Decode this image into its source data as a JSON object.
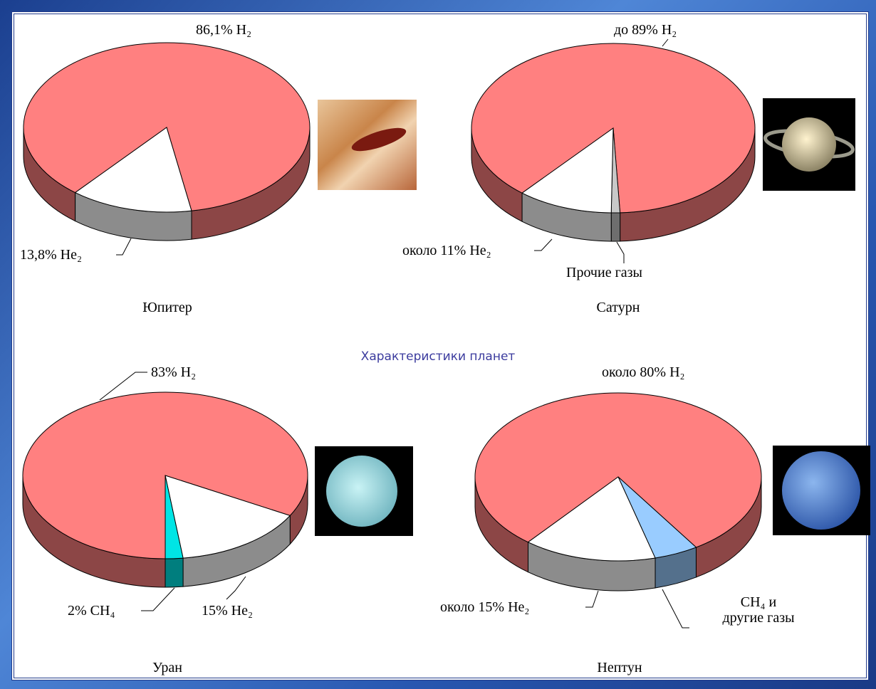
{
  "title": "Характеристики планет",
  "chart_data": [
    {
      "type": "pie",
      "title": "Юпитер",
      "values": [
        86.1,
        13.8
      ],
      "value_labels": [
        "86,1% H₂",
        "13,8% He₂"
      ],
      "colors": [
        "#ff8080",
        "#ffffff"
      ]
    },
    {
      "type": "pie",
      "title": "Сатурн",
      "values": [
        89,
        1,
        11
      ],
      "value_labels": [
        "до 89% H₂",
        "Прочие газы",
        "около 11% He₂"
      ],
      "colors": [
        "#ff8080",
        "#c8c8c8",
        "#ffffff"
      ]
    },
    {
      "type": "pie",
      "title": "Уран",
      "values": [
        83,
        15,
        2
      ],
      "value_labels": [
        "83% H₂",
        "15% He₂",
        "2% CH₄"
      ],
      "colors": [
        "#ff8080",
        "#ffffff",
        "#00e5e5"
      ]
    },
    {
      "type": "pie",
      "title": "Нептун",
      "values": [
        80,
        5,
        15
      ],
      "value_labels": [
        "около 80% H₂",
        "CH₄ и другие газы",
        "около 15% He₂"
      ],
      "colors": [
        "#ff8080",
        "#99ccff",
        "#ffffff"
      ]
    }
  ]
}
